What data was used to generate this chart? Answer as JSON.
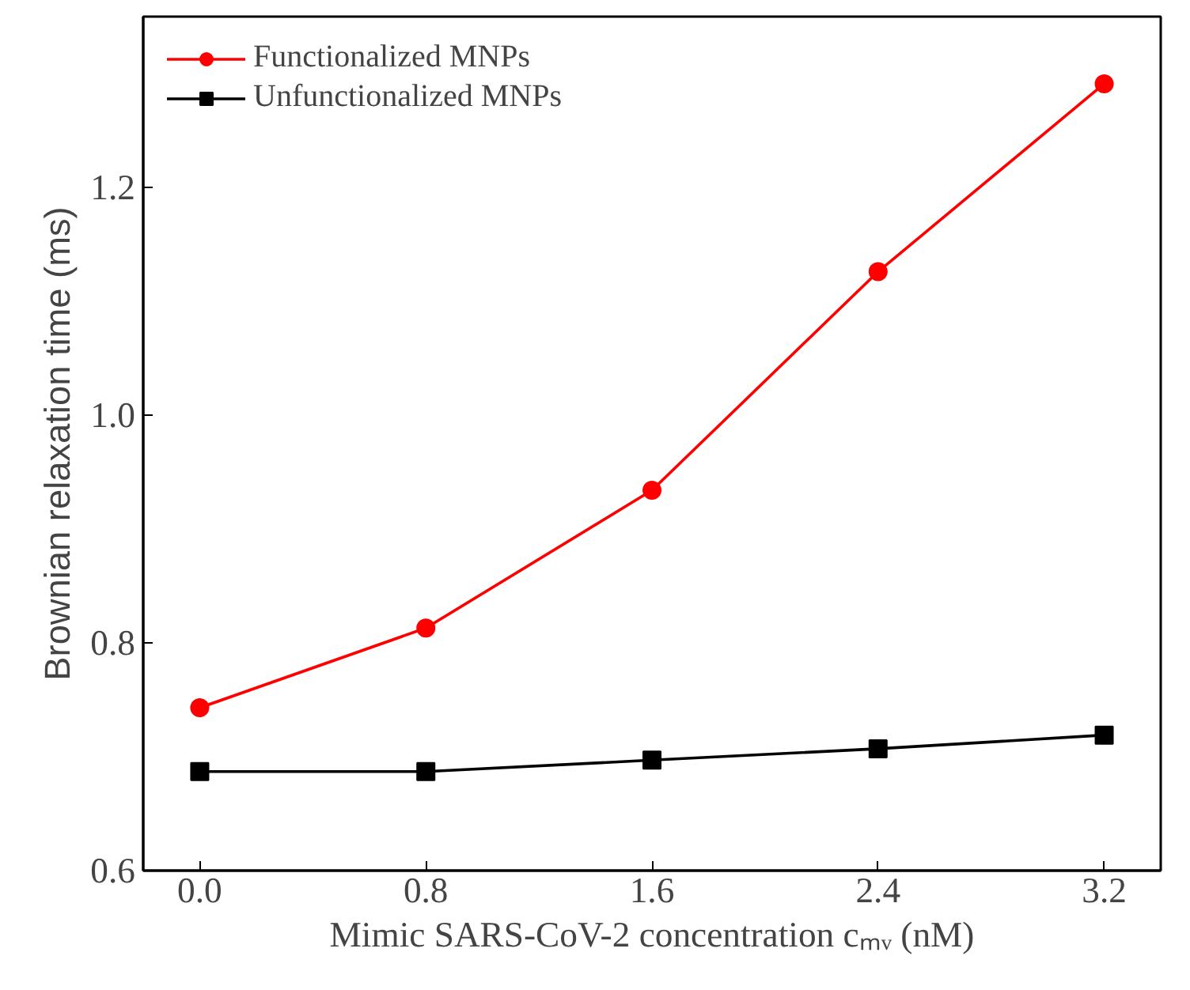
{
  "chart_data": {
    "type": "line",
    "xlabel": "Mimic SARS-CoV-2 concentration cₘᵥ (nM)",
    "ylabel": "Brownian relaxation time (ms)",
    "x": [
      0,
      0.8,
      1.6,
      2.4,
      3.2
    ],
    "xlim": [
      -0.2,
      3.4
    ],
    "xticks": [
      {
        "value": 0,
        "label": "0.0"
      },
      0.8,
      1.6,
      2.4,
      3.2
    ],
    "ylim": [
      0.6,
      1.35
    ],
    "yticks": [
      0.6,
      0.8,
      {
        "value": 1.0,
        "label": "1.0"
      },
      1.2
    ],
    "series": [
      {
        "name": "Functionalized MNPs",
        "color": "#ff0000",
        "marker": "circle",
        "values": [
          0.743,
          0.813,
          0.934,
          1.126,
          1.291
        ]
      },
      {
        "name": "Unfunctionalized MNPs",
        "color": "#000000",
        "marker": "square",
        "values": [
          0.687,
          0.687,
          0.697,
          0.707,
          0.719
        ]
      }
    ],
    "legend": "top left",
    "grid": false,
    "line_style": "solid"
  }
}
